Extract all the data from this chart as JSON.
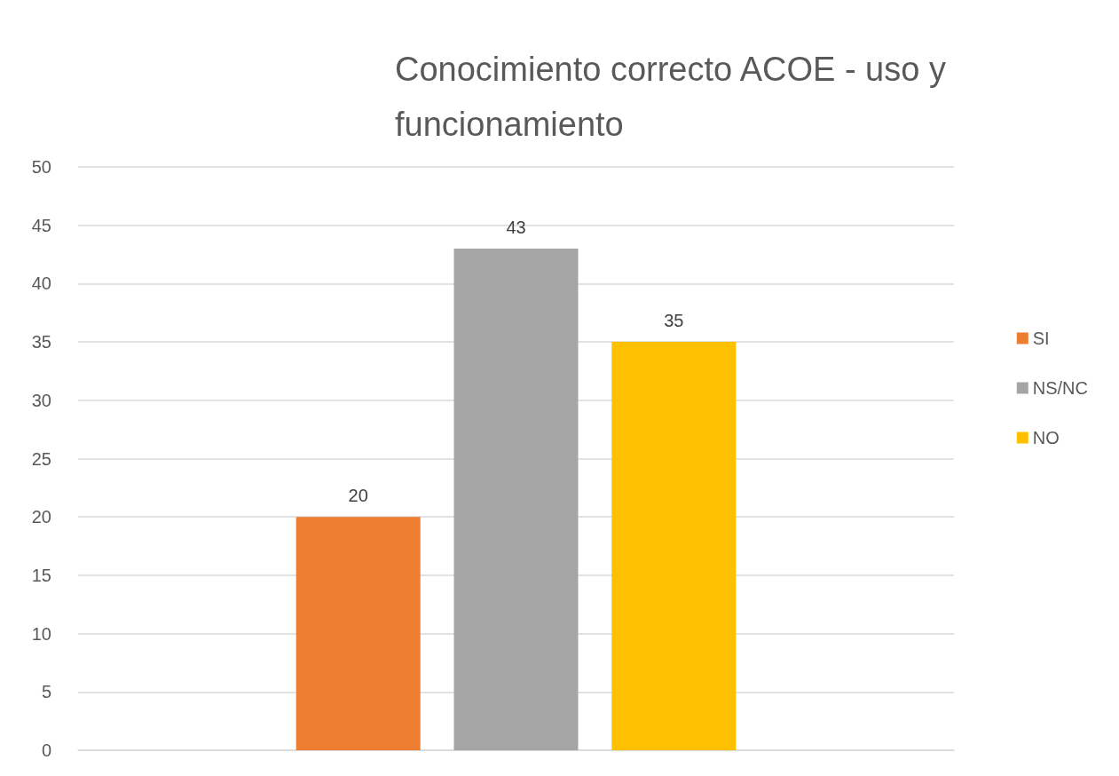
{
  "chart_data": {
    "type": "bar",
    "title": "Conocimiento correcto ACOE - uso y funcionamiento",
    "categories": [
      null
    ],
    "series": [
      {
        "name": "SI",
        "color": "#ed7d31",
        "values": [
          20
        ]
      },
      {
        "name": "NS/NC",
        "color": "#a5a5a5",
        "values": [
          43
        ]
      },
      {
        "name": "NO",
        "color": "#ffc000",
        "values": [
          35
        ]
      }
    ],
    "ylim": [
      0,
      50
    ],
    "yticks": [
      0,
      5,
      10,
      15,
      20,
      25,
      30,
      35,
      40,
      45,
      50
    ],
    "grid": "y",
    "legend": "right",
    "data_labels": true
  }
}
